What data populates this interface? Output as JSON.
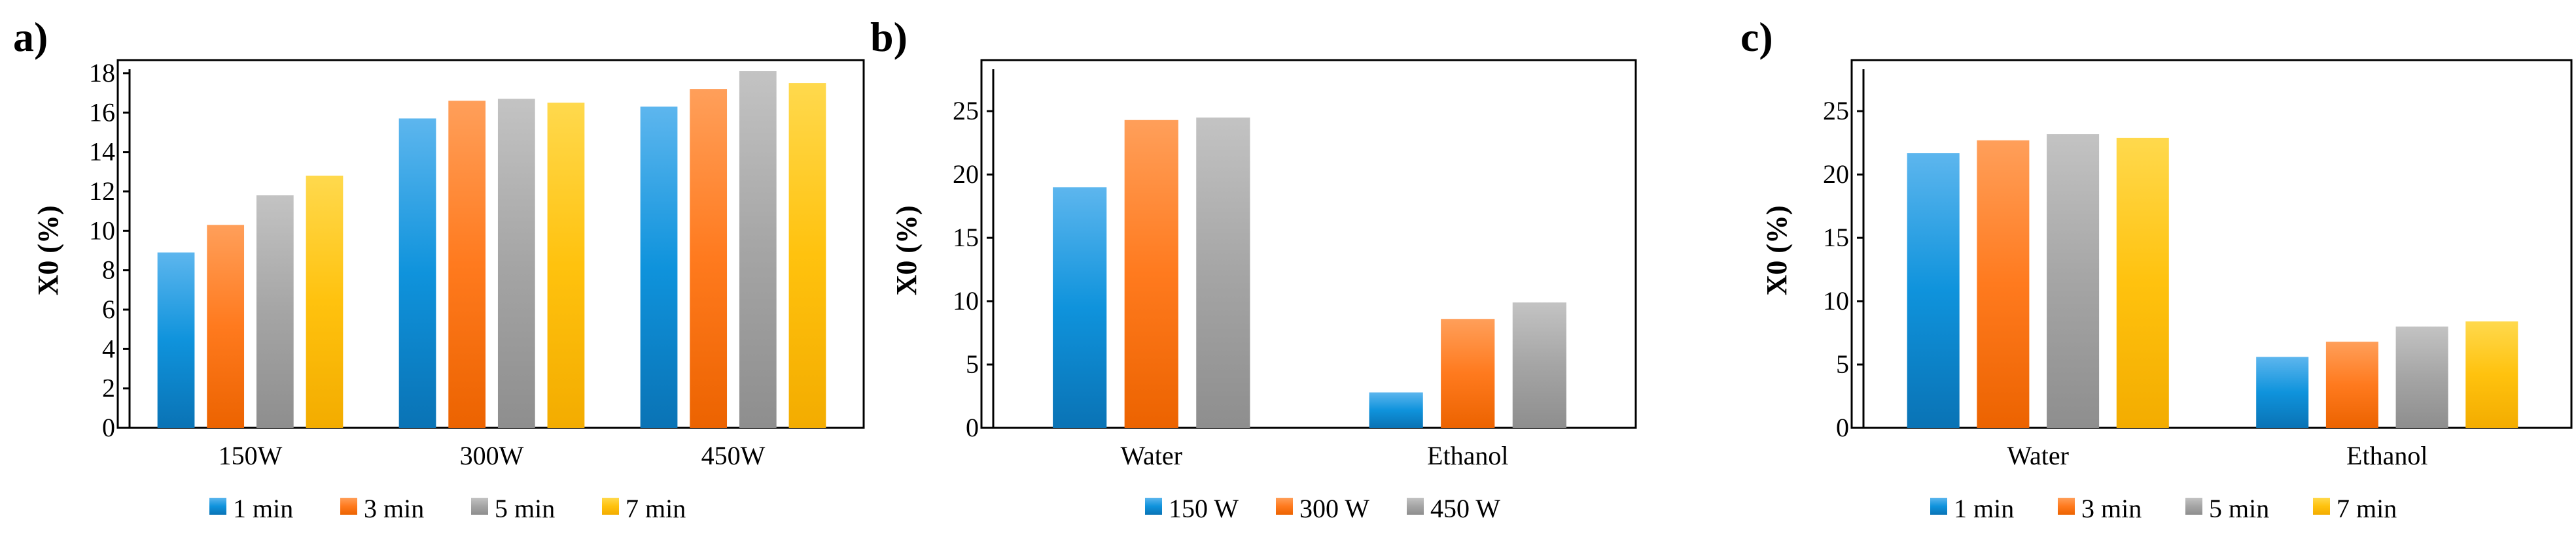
{
  "colors": {
    "blue": [
      "#5db6ee",
      "#0f93dc",
      "#0a73b5"
    ],
    "orange": [
      "#ff9f5a",
      "#ff7a1e",
      "#ec6300"
    ],
    "gray": [
      "#c3c3c3",
      "#a5a5a5",
      "#8e8e8e"
    ],
    "yellow": [
      "#ffd94d",
      "#ffc20e",
      "#f3ac00"
    ]
  },
  "chart_data": [
    {
      "panel": "a)",
      "type": "bar",
      "ylabel": "X0 (%)",
      "ylim": [
        0,
        18
      ],
      "yticks": [
        0,
        2,
        4,
        6,
        8,
        10,
        12,
        14,
        16,
        18
      ],
      "categories": [
        "150W",
        "300W",
        "450W"
      ],
      "series": [
        {
          "name": "1 min",
          "color": "blue",
          "values": [
            8.9,
            15.7,
            16.3
          ]
        },
        {
          "name": "3 min",
          "color": "orange",
          "values": [
            10.3,
            16.6,
            17.2
          ]
        },
        {
          "name": "5 min",
          "color": "gray",
          "values": [
            11.8,
            16.7,
            18.1
          ]
        },
        {
          "name": "7 min",
          "color": "yellow",
          "values": [
            12.8,
            16.5,
            17.5
          ]
        }
      ],
      "legend": "bottom"
    },
    {
      "panel": "b)",
      "type": "bar",
      "ylabel": "X0 (%)",
      "ylim": [
        0,
        28
      ],
      "yticks": [
        0,
        5,
        10,
        15,
        20,
        25
      ],
      "categories": [
        "Water",
        "Ethanol"
      ],
      "series": [
        {
          "name": "150 W",
          "color": "blue",
          "values": [
            19.0,
            2.8
          ]
        },
        {
          "name": "300 W",
          "color": "orange",
          "values": [
            24.3,
            8.6
          ]
        },
        {
          "name": "450 W",
          "color": "gray",
          "values": [
            24.5,
            9.9
          ]
        }
      ],
      "legend": "bottom"
    },
    {
      "panel": "c)",
      "type": "bar",
      "ylabel": "X0 (%)",
      "ylim": [
        0,
        28
      ],
      "yticks": [
        0,
        5,
        10,
        15,
        20,
        25
      ],
      "categories": [
        "Water",
        "Ethanol"
      ],
      "series": [
        {
          "name": "1 min",
          "color": "blue",
          "values": [
            21.7,
            5.6
          ]
        },
        {
          "name": "3 min",
          "color": "orange",
          "values": [
            22.7,
            6.8
          ]
        },
        {
          "name": "5 min",
          "color": "gray",
          "values": [
            23.2,
            8.0
          ]
        },
        {
          "name": "7 min",
          "color": "yellow",
          "values": [
            22.9,
            8.4
          ]
        }
      ],
      "legend": "bottom"
    }
  ]
}
